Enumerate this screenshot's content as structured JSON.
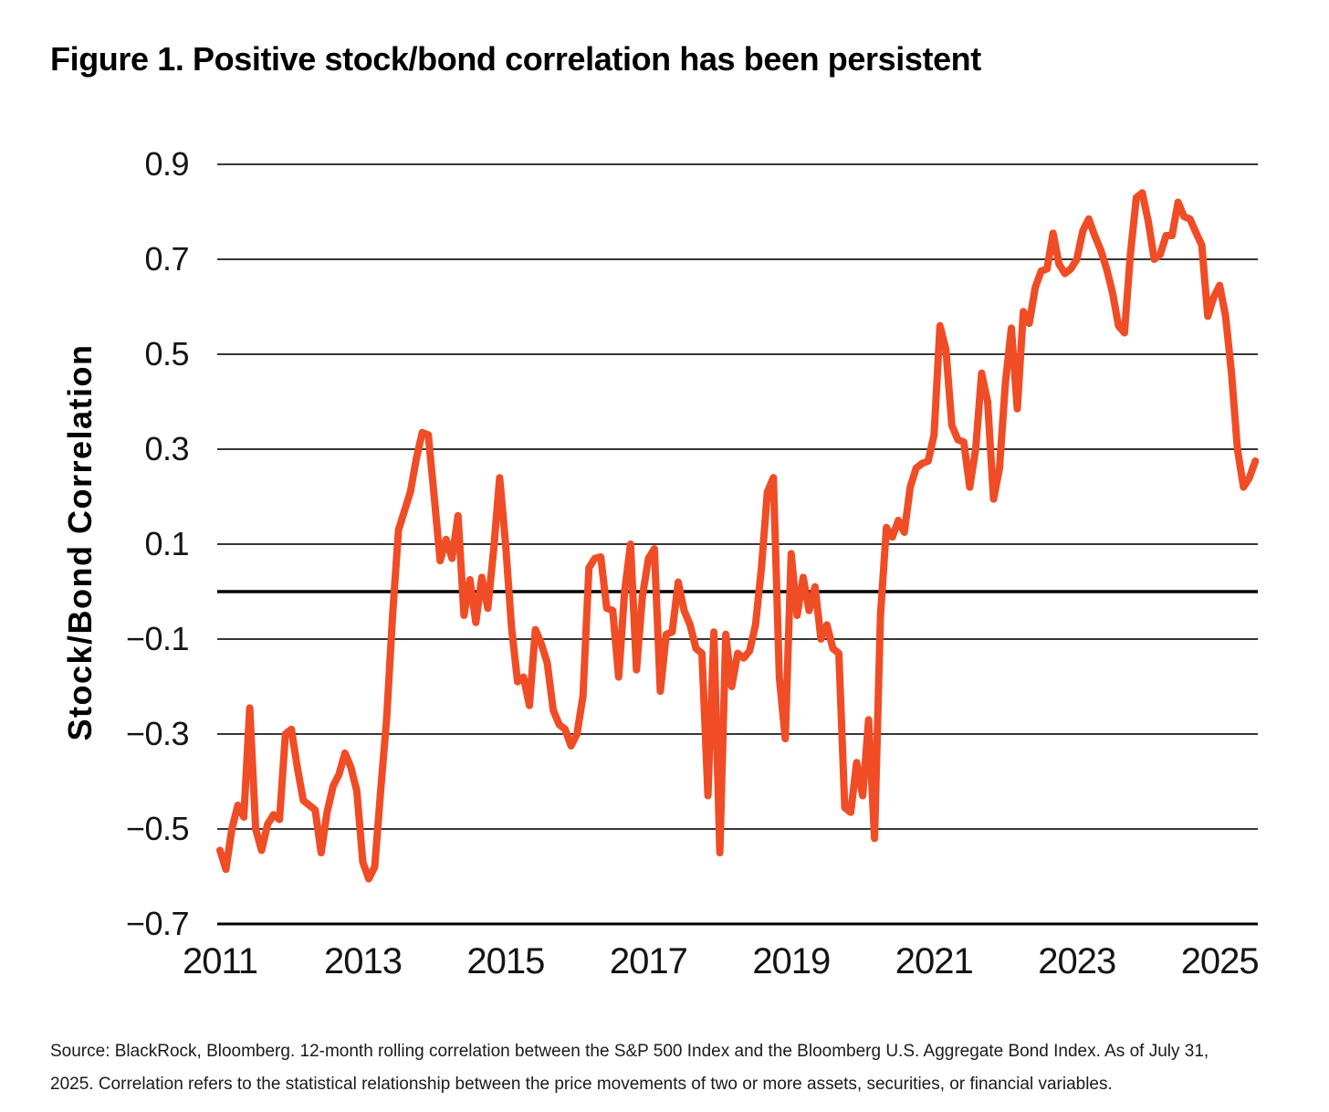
{
  "title": "Figure 1. Positive stock/bond correlation has been persistent",
  "source_note": {
    "line1": "Source: BlackRock, Bloomberg. 12-month rolling correlation between the S&P 500 Index and the Bloomberg U.S. Aggregate Bond Index. As of July 31,",
    "line2": "2025. Correlation refers to the statistical relationship between the price movements of two or more assets, securities, or financial variables."
  },
  "chart_data": {
    "type": "line",
    "title": "Figure 1. Positive stock/bond correlation has been persistent",
    "xlabel": "",
    "ylabel": "Stock/Bond Correlation",
    "ylim": [
      -0.7,
      0.9
    ],
    "grid": "horizontal",
    "legend": "none",
    "zero_line": true,
    "line_color": "#F04C25",
    "grid_color": "#1a1a1a",
    "x_start": "2011-01",
    "x_end": "2025-07",
    "x_frequency": "monthly",
    "x_ticks": [
      {
        "year": 2011,
        "label": "2011"
      },
      {
        "year": 2013,
        "label": "2013"
      },
      {
        "year": 2015,
        "label": "2015"
      },
      {
        "year": 2017,
        "label": "2017"
      },
      {
        "year": 2019,
        "label": "2019"
      },
      {
        "year": 2021,
        "label": "2021"
      },
      {
        "year": 2023,
        "label": "2023"
      },
      {
        "year": 2025,
        "label": "2025"
      }
    ],
    "y_ticks": [
      {
        "value": 0.9,
        "label": "0.9"
      },
      {
        "value": 0.7,
        "label": "0.7"
      },
      {
        "value": 0.5,
        "label": "0.5"
      },
      {
        "value": 0.3,
        "label": "0.3"
      },
      {
        "value": 0.1,
        "label": "0.1"
      },
      {
        "value": -0.1,
        "label": "−0.1"
      },
      {
        "value": -0.3,
        "label": "−0.3"
      },
      {
        "value": -0.5,
        "label": "−0.5"
      },
      {
        "value": -0.7,
        "label": "−0.7"
      }
    ],
    "series": [
      {
        "name": "12-month rolling correlation: S&P 500 vs Bloomberg U.S. Aggregate Bond Index",
        "color": "#F04C25",
        "values": [
          -0.545,
          -0.585,
          -0.5,
          -0.45,
          -0.475,
          -0.245,
          -0.5,
          -0.545,
          -0.49,
          -0.47,
          -0.48,
          -0.3,
          -0.29,
          -0.37,
          -0.44,
          -0.45,
          -0.46,
          -0.55,
          -0.465,
          -0.41,
          -0.385,
          -0.34,
          -0.37,
          -0.42,
          -0.57,
          -0.605,
          -0.58,
          -0.42,
          -0.27,
          -0.05,
          0.13,
          0.17,
          0.21,
          0.28,
          0.335,
          0.33,
          0.2,
          0.065,
          0.11,
          0.07,
          0.16,
          -0.05,
          0.025,
          -0.065,
          0.03,
          -0.035,
          0.09,
          0.24,
          0.1,
          -0.075,
          -0.19,
          -0.18,
          -0.24,
          -0.08,
          -0.11,
          -0.15,
          -0.25,
          -0.28,
          -0.29,
          -0.325,
          -0.3,
          -0.22,
          0.05,
          0.07,
          0.073,
          -0.035,
          -0.04,
          -0.18,
          0.0,
          0.1,
          -0.165,
          -0.01,
          0.07,
          0.09,
          -0.21,
          -0.09,
          -0.085,
          0.02,
          -0.04,
          -0.07,
          -0.12,
          -0.13,
          -0.43,
          -0.085,
          -0.55,
          -0.09,
          -0.2,
          -0.13,
          -0.14,
          -0.125,
          -0.07,
          0.05,
          0.21,
          0.24,
          -0.18,
          -0.31,
          0.08,
          -0.05,
          0.03,
          -0.04,
          0.01,
          -0.1,
          -0.07,
          -0.12,
          -0.13,
          -0.455,
          -0.465,
          -0.36,
          -0.43,
          -0.27,
          -0.52,
          -0.05,
          0.135,
          0.115,
          0.15,
          0.125,
          0.22,
          0.26,
          0.27,
          0.275,
          0.33,
          0.56,
          0.51,
          0.35,
          0.32,
          0.315,
          0.22,
          0.3,
          0.46,
          0.4,
          0.195,
          0.26,
          0.44,
          0.555,
          0.385,
          0.59,
          0.565,
          0.64,
          0.675,
          0.68,
          0.755,
          0.69,
          0.67,
          0.68,
          0.7,
          0.76,
          0.785,
          0.75,
          0.72,
          0.68,
          0.63,
          0.56,
          0.545,
          0.71,
          0.83,
          0.84,
          0.78,
          0.7,
          0.71,
          0.75,
          0.75,
          0.82,
          0.79,
          0.785,
          0.757,
          0.73,
          0.58,
          0.62,
          0.645,
          0.58,
          0.46,
          0.3,
          0.22,
          0.24,
          0.275
        ]
      }
    ]
  }
}
